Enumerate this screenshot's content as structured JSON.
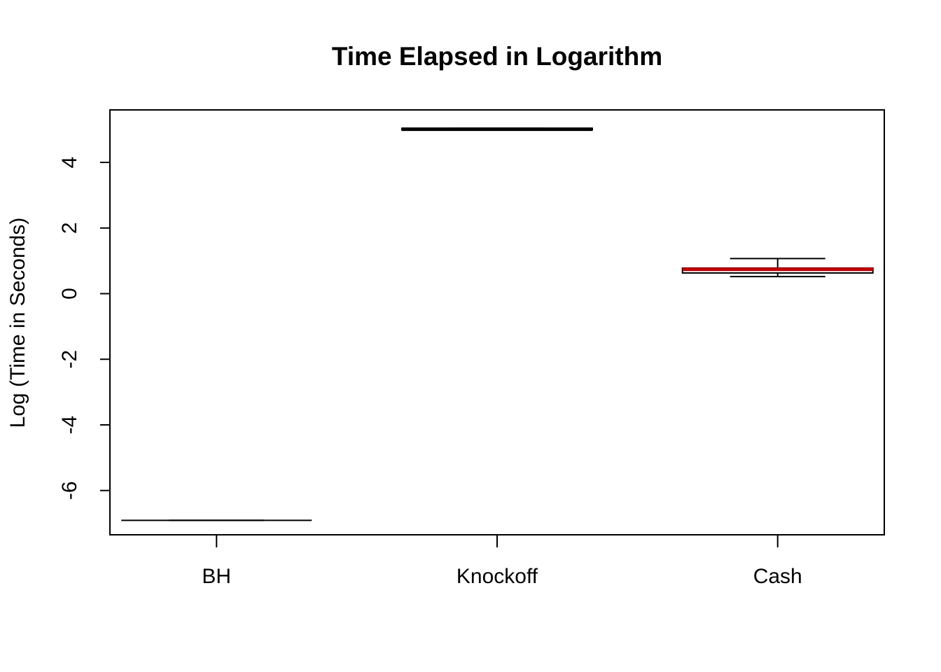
{
  "chart_data": {
    "type": "box",
    "title": "Time Elapsed in Logarithm",
    "xlabel": "",
    "ylabel": "Log (Time in Seconds)",
    "categories": [
      "BH",
      "Knockoff",
      "Cash"
    ],
    "boxes": [
      {
        "category": "BH",
        "whisker_low": -6.91,
        "q1": -6.91,
        "median": -6.91,
        "q3": -6.91,
        "whisker_high": -6.91,
        "median_color": "#000000"
      },
      {
        "category": "Knockoff",
        "whisker_low": 4.99,
        "q1": 4.99,
        "median": 5.01,
        "q3": 5.04,
        "whisker_high": 5.04,
        "median_color": "#000000"
      },
      {
        "category": "Cash",
        "whisker_low": 0.52,
        "q1": 0.63,
        "median": 0.74,
        "q3": 0.78,
        "whisker_high": 1.07,
        "median_color": "#c00000"
      }
    ],
    "yticks": [
      "-6",
      "-4",
      "-2",
      "0",
      "2",
      "4"
    ],
    "ylim": [
      -7.35,
      5.6
    ],
    "grid": false,
    "legend": false
  }
}
